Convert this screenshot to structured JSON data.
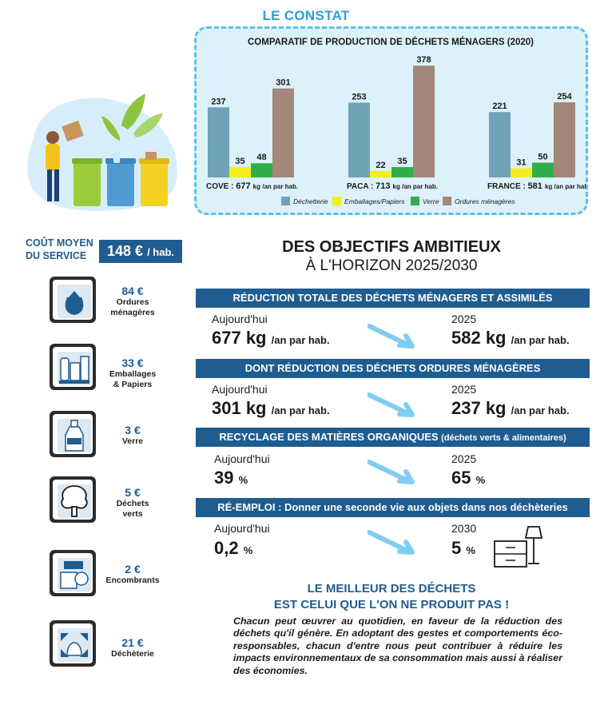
{
  "header": {
    "title": "LE CONSTAT"
  },
  "chart_data": {
    "type": "bar",
    "title": "COMPARATIF DE PRODUCTION DE DÉCHETS MÉNAGERS (2020)",
    "categories": [
      "COVE",
      "PACA",
      "FRANCE"
    ],
    "category_labels": [
      {
        "name": "COVE :",
        "total": "677",
        "unit": "kg /an par hab."
      },
      {
        "name": "PACA :",
        "total": "713",
        "unit": "kg /an par hab."
      },
      {
        "name": "FRANCE :",
        "total": "581",
        "unit": "kg /an par hab."
      }
    ],
    "series": [
      {
        "name": "Déchetterie",
        "color": "#6fa3b6",
        "values": [
          237,
          253,
          221
        ]
      },
      {
        "name": "Emballages/Papiers",
        "color": "#f5ec1e",
        "values": [
          35,
          22,
          31
        ]
      },
      {
        "name": "Verre",
        "color": "#2fae4a",
        "values": [
          48,
          35,
          50
        ]
      },
      {
        "name": "Ordures ménagères",
        "color": "#a2877a",
        "values": [
          301,
          378,
          254
        ]
      }
    ],
    "ylim": [
      0,
      400
    ],
    "legend_position": "bottom",
    "grid": false
  },
  "cost": {
    "label_line1": "COÛT MOYEN",
    "label_line2": "DU SERVICE",
    "value": "148 €",
    "unit": "/ hab."
  },
  "services": [
    {
      "amount": "84 €",
      "label_line1": "Ordures",
      "label_line2": "ménagères",
      "icon": "garbage-bag-icon"
    },
    {
      "amount": "33 €",
      "label_line1": "Emballages",
      "label_line2": "& Papiers",
      "icon": "packaging-icon"
    },
    {
      "amount": "3 €",
      "label_line1": "Verre",
      "label_line2": "",
      "icon": "glass-bottle-icon"
    },
    {
      "amount": "5 €",
      "label_line1": "Déchets",
      "label_line2": "verts",
      "icon": "tree-icon"
    },
    {
      "amount": "2 €",
      "label_line1": "Encombrants",
      "label_line2": "",
      "icon": "bulky-items-icon"
    },
    {
      "amount": "21 €",
      "label_line1": "Déchèterie",
      "label_line2": "",
      "icon": "recycling-center-icon"
    }
  ],
  "objectives": {
    "title": "DES OBJECTIFS AMBITIEUX",
    "subtitle": "À L'HORIZON 2025/2030",
    "items": [
      {
        "band": "RÉDUCTION TOTALE DES DÉCHETS MÉNAGERS ET ASSIMILÉS",
        "band_note": "",
        "from_label": "Aujourd'hui",
        "from_value": "677 kg",
        "from_unit": "/an par hab.",
        "to_label": "2025",
        "to_value": "582 kg",
        "to_unit": "/an par hab."
      },
      {
        "band": "DONT RÉDUCTION DES DÉCHETS ORDURES MÉNAGÈRES",
        "band_note": "",
        "from_label": "Aujourd'hui",
        "from_value": "301 kg",
        "from_unit": "/an par hab.",
        "to_label": "2025",
        "to_value": "237 kg",
        "to_unit": "/an par hab."
      },
      {
        "band": "RECYCLAGE DES MATIÈRES ORGANIQUES",
        "band_note": "(déchets verts & alimentaires)",
        "from_label": "Aujourd'hui",
        "from_value": "39",
        "from_unit": "%",
        "to_label": "2025",
        "to_value": "65",
        "to_unit": "%"
      },
      {
        "band": "RÉ-EMPLOI : Donner une seconde vie aux objets dans nos déchèteries",
        "band_note": "",
        "from_label": "Aujourd'hui",
        "from_value": "0,2",
        "from_unit": "%",
        "to_label": "2030",
        "to_value": "5",
        "to_unit": "%"
      }
    ]
  },
  "best_waste": {
    "title_line1": "LE MEILLEUR DES DÉCHETS",
    "title_line2": "EST CELUI QUE L'ON NE PRODUIT PAS !",
    "text": "Chacun peut œuvrer au quotidien, en faveur de la réduction des déchets qu'il génère. En adoptant des gestes et comportements éco-responsables, chacun d'entre nous peut contribuer à réduire les impacts environnementaux de sa consommation mais aussi à réaliser des économies."
  },
  "colors": {
    "accent": "#2aa0d6",
    "primary": "#1f5c8f",
    "arrow": "#7fcdf0",
    "chart_bg": "#dcf1fa"
  }
}
